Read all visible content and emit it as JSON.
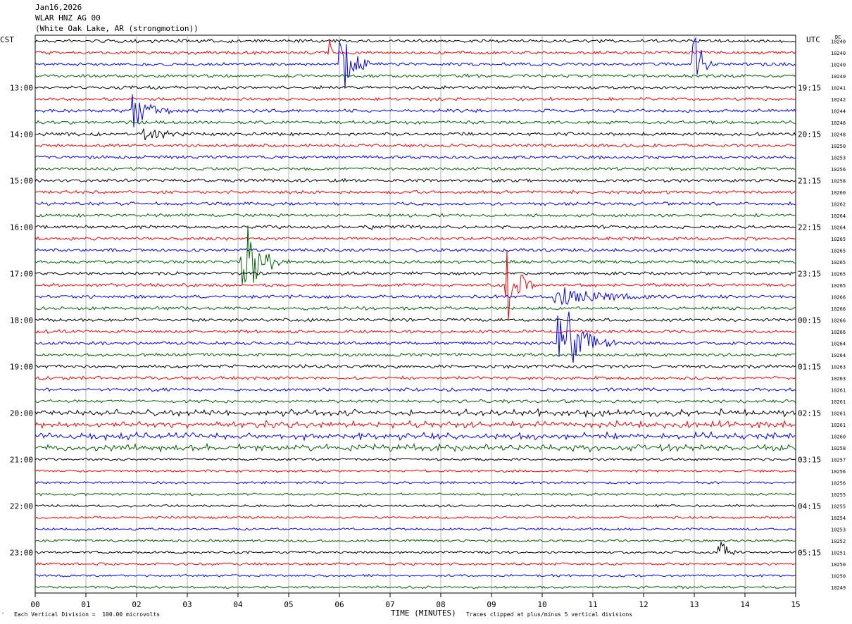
{
  "header": {
    "date": "Jan16,2026",
    "station": "WLAR HNZ AG 00",
    "location": "(White Oak Lake, AR (strongmotion))"
  },
  "left_tz": "CST",
  "right_tz": "UTC",
  "dc_label": "DC",
  "footer": {
    "scale": "Each Vertical Division =  100.00 microvolts",
    "xlabel": "TIME (MINUTES)",
    "clip": "Traces clipped at plus/minus 5 vertical divisions",
    "logo": "ˆ"
  },
  "colors": {
    "line_cycle": [
      "#000000",
      "#ff0000",
      "#0000ff",
      "#006400"
    ],
    "grid": "#a0a0a0",
    "frame": "#000000"
  },
  "chart_data": {
    "type": "line",
    "title": "WLAR HNZ AG 00",
    "xlabel": "TIME (MINUTES)",
    "xlim": [
      0,
      15
    ],
    "x_ticks": [
      "00",
      "01",
      "02",
      "03",
      "04",
      "05",
      "06",
      "07",
      "08",
      "09",
      "10",
      "11",
      "12",
      "13",
      "14",
      "15"
    ],
    "row_minutes": 15,
    "rows": 48,
    "left_hour_labels": [
      "13:00",
      "14:00",
      "15:00",
      "16:00",
      "17:00",
      "18:00",
      "19:00",
      "20:00",
      "21:00",
      "22:00",
      "23:00"
    ],
    "right_hour_labels": [
      "19:15",
      "20:15",
      "21:15",
      "22:15",
      "23:15",
      "00:15",
      "01:15",
      "02:15",
      "03:15",
      "04:15",
      "05:15"
    ],
    "hour_label_first_row": 4,
    "dc_offsets": [
      10240,
      10240,
      10240,
      10240,
      10241,
      10242,
      10244,
      10246,
      10248,
      10250,
      10253,
      10256,
      10258,
      10260,
      10262,
      10264,
      10264,
      10265,
      10265,
      10265,
      10265,
      10265,
      10266,
      10266,
      10266,
      10266,
      10264,
      10264,
      10263,
      10263,
      10261,
      10261,
      10261,
      10261,
      10260,
      10258,
      10257,
      10256,
      10256,
      10255,
      10255,
      10254,
      10253,
      10252,
      10251,
      10250,
      10250,
      10249
    ],
    "noise": [
      2,
      2,
      2,
      2,
      2,
      2,
      2,
      2,
      2,
      2,
      2,
      2,
      2,
      2,
      2,
      2,
      2,
      2,
      2,
      2,
      2,
      2,
      2,
      2,
      2,
      2,
      2,
      2,
      2,
      2,
      2,
      2,
      3,
      3,
      3,
      3,
      1.5,
      1.5,
      1.5,
      1.5,
      1.5,
      1.5,
      1.5,
      1.5,
      1.5,
      1.5,
      1.5,
      1.5
    ],
    "events": [
      {
        "row": 1,
        "minute": 5.8,
        "amp": 45,
        "dur": 0.1
      },
      {
        "row": 2,
        "minute": 6.1,
        "amp": 60,
        "dur": 0.5
      },
      {
        "row": 2,
        "minute": 13.0,
        "amp": 55,
        "dur": 0.4
      },
      {
        "row": 6,
        "minute": 2.05,
        "amp": 30,
        "dur": 0.7
      },
      {
        "row": 8,
        "minute": 2.3,
        "amp": 8,
        "dur": 1.0
      },
      {
        "row": 19,
        "minute": 4.2,
        "amp": 70,
        "dur": 0.8
      },
      {
        "row": 21,
        "minute": 9.4,
        "amp": 60,
        "dur": 0.5
      },
      {
        "row": 26,
        "minute": 10.5,
        "amp": 55,
        "dur": 1.0
      },
      {
        "row": 22,
        "minute": 10.6,
        "amp": 12,
        "dur": 2.0
      },
      {
        "row": 44,
        "minute": 13.55,
        "amp": 14,
        "dur": 0.4
      },
      {
        "row": 16,
        "minute": 6.6,
        "amp": 15,
        "dur": 0.08
      },
      {
        "row": 18,
        "minute": 6.85,
        "amp": 12,
        "dur": 0.08
      },
      {
        "row": 21,
        "minute": 9.3,
        "amp": 30,
        "dur": 0.15
      }
    ]
  }
}
